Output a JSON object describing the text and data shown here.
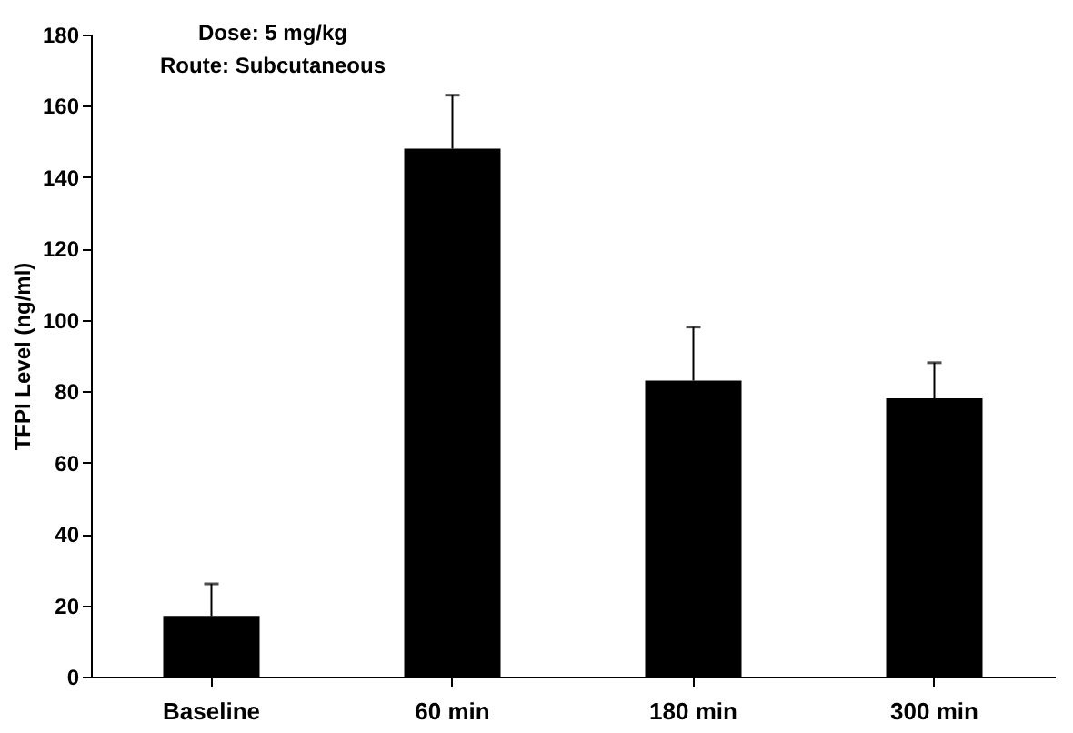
{
  "chart_data": {
    "type": "bar",
    "ylabel": "TFPI Level (ng/ml)",
    "categories": [
      "Baseline",
      "60 min",
      "180 min",
      "300 min"
    ],
    "values": [
      17,
      148,
      83,
      78
    ],
    "errors": [
      [
        17,
        26
      ],
      [
        148,
        163
      ],
      [
        83,
        98
      ],
      [
        78,
        88
      ]
    ],
    "color": "#000000",
    "ylim": [
      0,
      180
    ],
    "yticks": [
      0,
      20,
      40,
      60,
      80,
      100,
      120,
      140,
      160,
      180
    ],
    "grid": false,
    "annotations": [
      "Dose: 5 mg/kg",
      "Route: Subcutaneous"
    ]
  }
}
